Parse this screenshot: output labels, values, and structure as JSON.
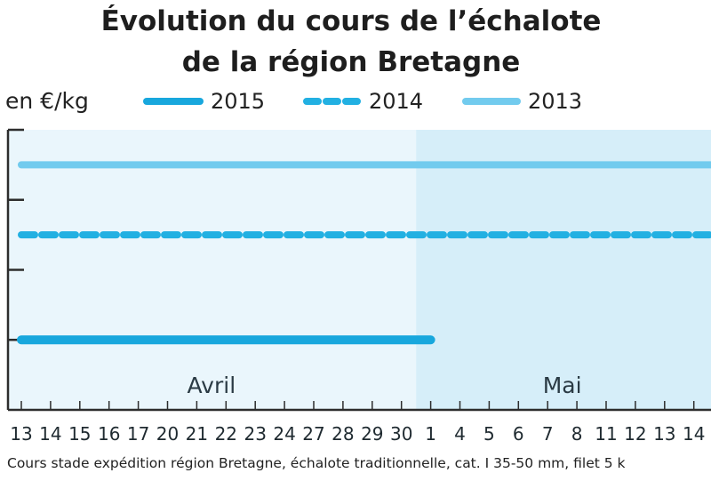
{
  "colors": {
    "s2015": "#18a7dd",
    "s2014": "#22b0e2",
    "s2013": "#72cbee",
    "plot_bg_1": "#eaf6fc",
    "plot_bg_2": "#d6eef9",
    "axis": "#2d2d2d"
  },
  "chart_data": {
    "type": "line",
    "title": "Évolution du cours de l’échalote de la région Bretagne",
    "title_lines": [
      "Évolution du cours de l’échalote",
      "de la région Bretagne"
    ],
    "ylabel": "en €/kg",
    "xlabel": "",
    "categories": [
      "13",
      "14",
      "15",
      "16",
      "17",
      "20",
      "21",
      "22",
      "23",
      "24",
      "27",
      "28",
      "29",
      "30",
      "1",
      "4",
      "5",
      "6",
      "7",
      "8",
      "11",
      "12",
      "13",
      "14"
    ],
    "months": [
      {
        "label": "Avril",
        "from_index": 0,
        "to_index": 13
      },
      {
        "label": "Mai",
        "from_index": 14,
        "to_index": 23
      }
    ],
    "ylim": [
      0,
      4
    ],
    "yticks": [
      1,
      2,
      3,
      4
    ],
    "series": [
      {
        "name": "2015",
        "style": "solid-thick",
        "values": [
          1,
          1,
          1,
          1,
          1,
          1,
          1,
          1,
          1,
          1,
          1,
          1,
          1,
          1,
          1,
          null,
          null,
          null,
          null,
          null,
          null,
          null,
          null,
          null
        ]
      },
      {
        "name": "2014",
        "style": "dashed",
        "values": [
          2.5,
          2.5,
          2.5,
          2.5,
          2.5,
          2.5,
          2.5,
          2.5,
          2.5,
          2.5,
          2.5,
          2.5,
          2.5,
          2.5,
          2.5,
          2.5,
          2.5,
          2.5,
          2.5,
          2.5,
          2.5,
          2.5,
          2.5,
          2.5
        ]
      },
      {
        "name": "2013",
        "style": "solid",
        "values": [
          3.5,
          3.5,
          3.5,
          3.5,
          3.5,
          3.5,
          3.5,
          3.5,
          3.5,
          3.5,
          3.5,
          3.5,
          3.5,
          3.5,
          3.5,
          3.5,
          3.5,
          3.5,
          3.5,
          3.5,
          3.5,
          3.5,
          3.5,
          3.5
        ]
      }
    ],
    "legend_position": "top",
    "caption": "Cours stade expédition région Bretagne, échalote traditionnelle, cat. I 35-50 mm, filet 5 k"
  }
}
